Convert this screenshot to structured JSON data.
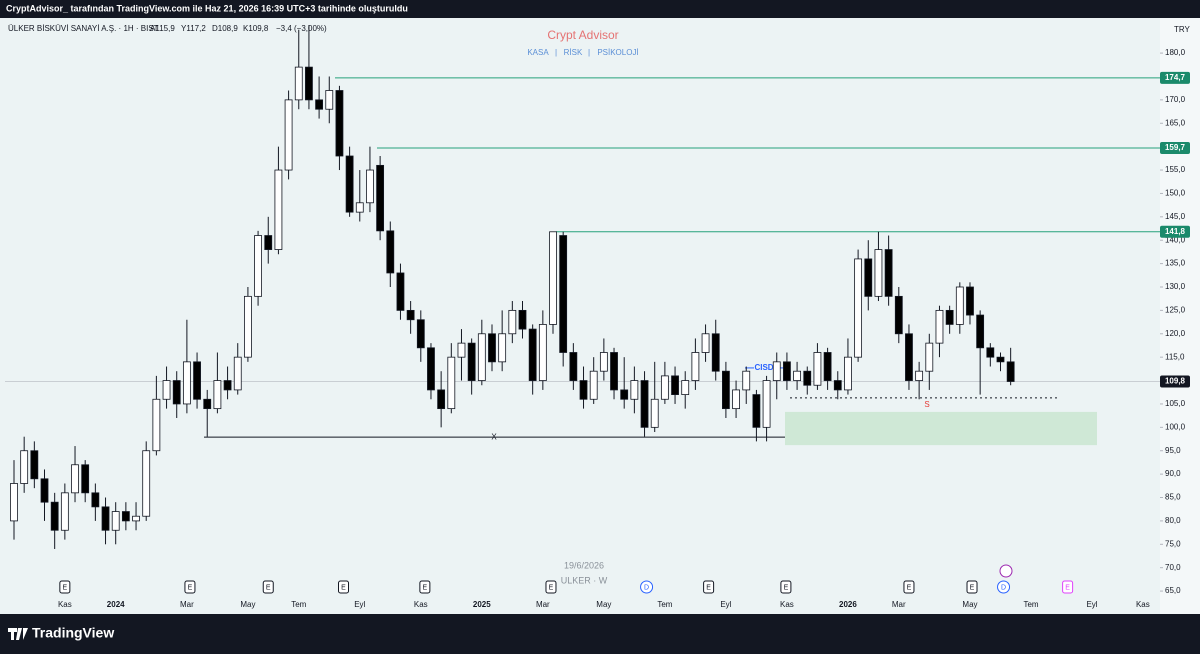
{
  "top_bar": "CryptAdvisor_ tarafından TradingView.com ile Haz 21, 2026 16:39 UTC+3 tarihinde oluşturuldu",
  "logo": "TradingView",
  "chart_data": {
    "type": "candlestick",
    "symbol": "ÜLKER BİSKÜVİ SANAYİ A.Ş. · 1H · BIST",
    "ohlc_labels": [
      "A115,9",
      "Y117,2",
      "D108,9",
      "K109,8"
    ],
    "change": "−3,4 (−3,00%)",
    "currency": "TRY",
    "title": "Crypt Advisor",
    "subtitle": [
      "KASA",
      "|",
      "RİSK",
      "|",
      "PSİKOLOJİ"
    ],
    "watermark": [
      "19/6/2026",
      "ULKER · W"
    ],
    "up_color": "#ffffff",
    "down_color": "#000000",
    "ylim": [
      60.1,
      187.5
    ],
    "yticks": [
      {
        "value": 65,
        "label": "65,0"
      },
      {
        "value": 70,
        "label": "70,0"
      },
      {
        "value": 75,
        "label": "75,0"
      },
      {
        "value": 80,
        "label": "80,0"
      },
      {
        "value": 85,
        "label": "85,0"
      },
      {
        "value": 90,
        "label": "90,0"
      },
      {
        "value": 95,
        "label": "95,0"
      },
      {
        "value": 100,
        "label": "100,0"
      },
      {
        "value": 105,
        "label": "105,0"
      },
      {
        "value": 110,
        "label": "110,0"
      },
      {
        "value": 115,
        "label": "115,0"
      },
      {
        "value": 120,
        "label": "120,0"
      },
      {
        "value": 125,
        "label": "125,0"
      },
      {
        "value": 130,
        "label": "130,0"
      },
      {
        "value": 135,
        "label": "135,0"
      },
      {
        "value": 140,
        "label": "140,0"
      },
      {
        "value": 145,
        "label": "145,0"
      },
      {
        "value": 150,
        "label": "150,0"
      },
      {
        "value": 155,
        "label": "155,0"
      },
      {
        "value": 160,
        "label": "160,0"
      },
      {
        "value": 165,
        "label": "165,0"
      },
      {
        "value": 170,
        "label": "170,0"
      },
      {
        "value": 175,
        "label": "175,0"
      },
      {
        "value": 180,
        "label": "180,0"
      }
    ],
    "categories": [
      null,
      null,
      null,
      null,
      null,
      "Kas",
      null,
      null,
      null,
      null,
      "2024",
      null,
      null,
      null,
      null,
      null,
      null,
      "Mar",
      null,
      null,
      null,
      null,
      null,
      "May",
      null,
      null,
      null,
      null,
      "Tem",
      null,
      null,
      null,
      null,
      null,
      "Eyl",
      null,
      null,
      null,
      null,
      null,
      "Kas",
      null,
      null,
      null,
      null,
      null,
      "2025",
      null,
      null,
      null,
      null,
      null,
      "Mar",
      null,
      null,
      null,
      null,
      null,
      "May",
      null,
      null,
      null,
      null,
      null,
      "Tem",
      null,
      null,
      null,
      null,
      null,
      "Eyl",
      null,
      null,
      null,
      null,
      null,
      "Kas",
      null,
      null,
      null,
      null,
      null,
      "2026",
      null,
      null,
      null,
      null,
      "Mar",
      null,
      null,
      null,
      null,
      null,
      null,
      "May",
      null,
      null,
      null,
      null,
      null,
      "Tem",
      null,
      null,
      null,
      null,
      null,
      "Eyl",
      null,
      null,
      null,
      null,
      "Kas"
    ],
    "open": [
      80,
      88,
      95,
      89,
      84,
      78,
      86,
      92,
      86,
      83,
      78,
      82,
      80,
      81,
      95,
      106,
      110,
      105,
      114,
      106,
      104,
      110,
      108,
      115,
      128,
      141,
      138,
      155,
      170,
      177,
      170,
      168,
      172,
      158,
      146,
      148,
      156,
      142,
      133,
      125,
      123,
      117,
      108,
      104,
      115,
      118,
      110,
      120,
      114,
      120,
      125,
      121,
      110,
      122,
      141,
      116,
      110,
      106,
      112,
      116,
      108,
      106,
      110,
      100,
      106,
      111,
      107,
      110,
      116,
      120,
      112,
      104,
      108,
      107,
      100,
      110,
      114,
      110,
      112,
      109,
      116,
      110,
      108,
      115,
      136,
      128,
      138,
      128,
      120,
      110,
      112,
      118,
      125,
      122,
      130,
      124,
      117,
      115,
      114,
      null,
      null,
      null,
      null,
      null,
      null,
      null,
      null,
      null,
      null,
      null,
      null,
      null
    ],
    "high": [
      93,
      98,
      97,
      91,
      86,
      88,
      96,
      93,
      88,
      85,
      84,
      84,
      84,
      97,
      111,
      113,
      112,
      123,
      116,
      108,
      116,
      113,
      118,
      130,
      142,
      145,
      160,
      172,
      185,
      186,
      175,
      175,
      173,
      160,
      155,
      160,
      158,
      144,
      135,
      127,
      125,
      118,
      112,
      118,
      121,
      119,
      123,
      122,
      125,
      127,
      127,
      122,
      125,
      141.8,
      141.8,
      118,
      113,
      115,
      119,
      117,
      115,
      113,
      112,
      114,
      114,
      113,
      112,
      119,
      122,
      123,
      114,
      110,
      113,
      108,
      111,
      116,
      116,
      114,
      113,
      118,
      117,
      112,
      119,
      138,
      140,
      141.8,
      141,
      130,
      122,
      114,
      120,
      126,
      126,
      131,
      131,
      125,
      118,
      116,
      117,
      null,
      null,
      null,
      null,
      null,
      null,
      null,
      null,
      null,
      null,
      null,
      null,
      null
    ],
    "low": [
      76,
      86,
      87,
      80,
      74,
      76,
      84,
      84,
      80,
      75,
      75,
      78,
      78,
      80,
      94,
      104,
      102,
      103,
      104,
      98,
      103,
      106,
      107,
      114,
      126,
      135,
      137,
      153,
      168,
      168,
      166,
      165,
      155,
      145,
      144,
      146,
      140,
      130,
      123,
      120,
      114,
      106,
      100,
      103,
      110,
      107,
      109,
      112,
      112,
      118,
      119,
      107,
      108,
      120,
      113,
      108,
      104,
      105,
      110,
      106,
      104,
      103,
      98,
      99,
      105,
      105,
      104,
      108,
      114,
      110,
      102,
      102,
      105,
      97,
      97,
      106,
      108,
      108,
      107,
      108,
      108,
      106,
      107,
      114,
      125,
      127,
      126,
      118,
      108,
      106,
      108,
      115,
      120,
      120,
      122,
      107,
      113,
      112,
      109,
      null,
      null,
      null,
      null,
      null,
      null,
      null,
      null,
      null,
      null,
      null,
      null,
      null
    ],
    "close": [
      88,
      95,
      89,
      84,
      78,
      86,
      92,
      86,
      83,
      78,
      82,
      80,
      81,
      95,
      106,
      110,
      105,
      114,
      106,
      104,
      110,
      108,
      115,
      128,
      141,
      138,
      155,
      170,
      177,
      170,
      168,
      172,
      158,
      146,
      148,
      155,
      142,
      133,
      125,
      123,
      117,
      108,
      104,
      115,
      118,
      110,
      120,
      114,
      120,
      125,
      121,
      110,
      122,
      141.8,
      116,
      110,
      106,
      112,
      116,
      108,
      106,
      110,
      100,
      106,
      111,
      107,
      110,
      116,
      120,
      112,
      104,
      108,
      112,
      100,
      110,
      114,
      110,
      112,
      109,
      116,
      110,
      108,
      115,
      136,
      128,
      138,
      128,
      120,
      110,
      112,
      118,
      125,
      122,
      130,
      124,
      117,
      115,
      114,
      109.8,
      null,
      null,
      null,
      null,
      null,
      null,
      null,
      null,
      null,
      null,
      null,
      null,
      null
    ],
    "levels": [
      {
        "value": 174.7,
        "label": "174,7"
      },
      {
        "value": 159.7,
        "label": "159,7"
      },
      {
        "value": 141.8,
        "label": "141,8"
      }
    ],
    "last_price": {
      "value": 109.8,
      "label": "109,8"
    },
    "x_line": {
      "value": 97.9,
      "label": "X"
    },
    "cisd": {
      "value": 112.7,
      "label": "CISD"
    },
    "dotted_level": {
      "value": 106.3,
      "label": "S"
    },
    "zone": [
      96.2,
      103.3
    ],
    "events": [
      "E",
      "E",
      "E",
      "E",
      "E",
      "E",
      "D",
      "E",
      "E",
      "E",
      "E",
      "D",
      "E"
    ]
  }
}
